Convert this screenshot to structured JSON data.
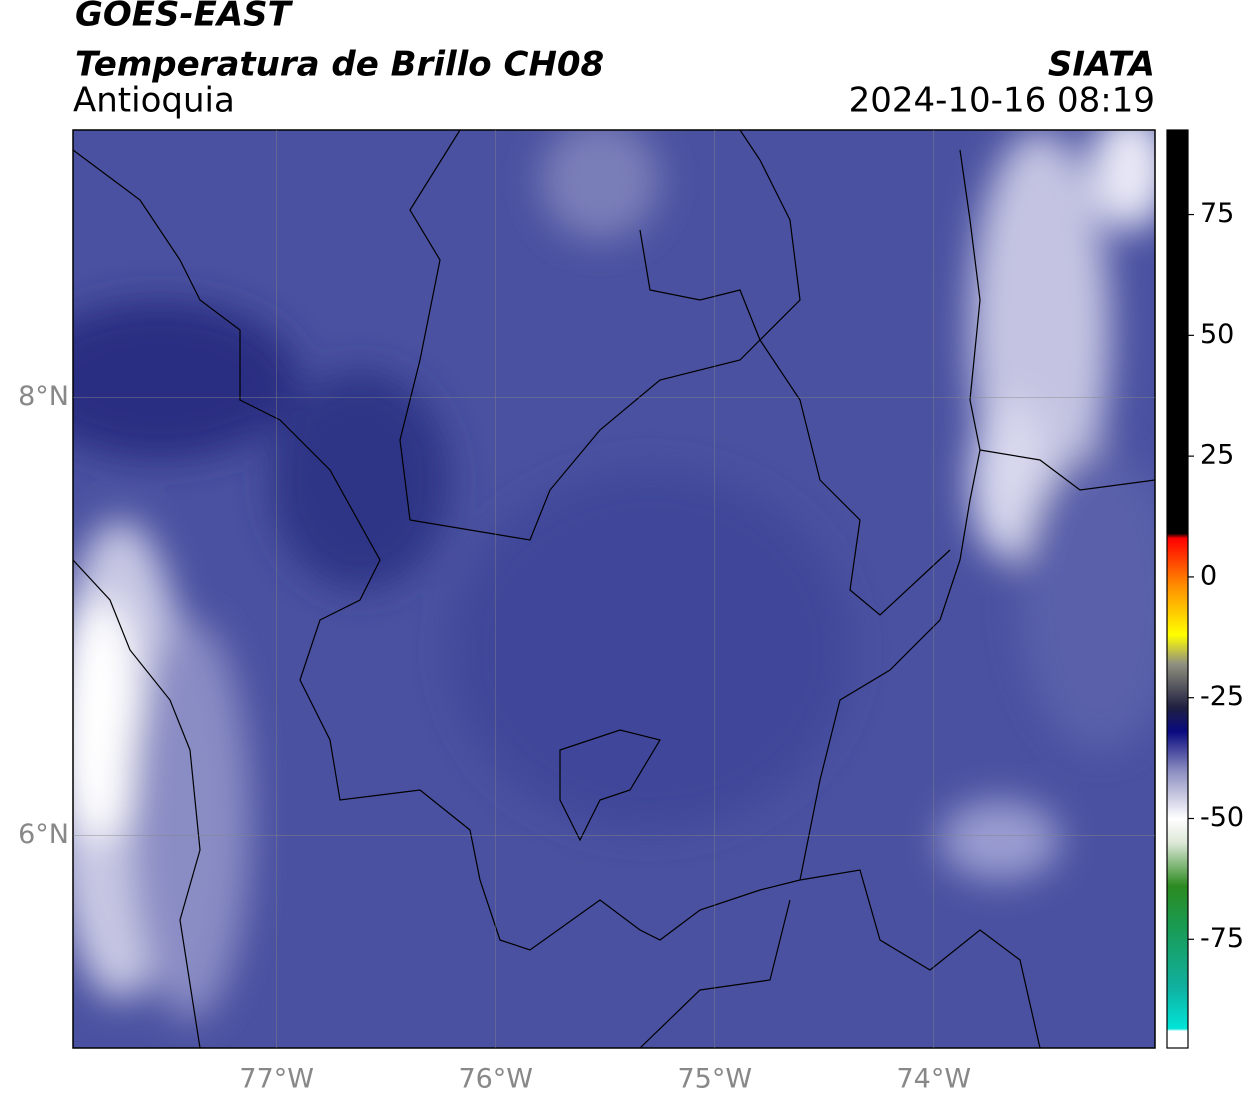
{
  "header": {
    "satellite": "GOES-EAST",
    "product": "Temperatura de Brillo CH08",
    "region": "Antioquia",
    "source": "SIATA",
    "datetime": "2024-10-16 08:19"
  },
  "map": {
    "lonlim": [
      -77.93,
      -72.99
    ],
    "latlim": [
      5.03,
      9.22
    ],
    "grid": true,
    "lonticks": [
      {
        "value": -77,
        "label": "77°W"
      },
      {
        "value": -76,
        "label": "76°W"
      },
      {
        "value": -75,
        "label": "75°W"
      },
      {
        "value": -74,
        "label": "74°W"
      }
    ],
    "latticks": [
      {
        "value": 8,
        "label": "8°N"
      },
      {
        "value": 6,
        "label": "6°N"
      }
    ]
  },
  "colorbar": {
    "clim": [
      -97.5,
      92.5
    ],
    "ticks": [
      75,
      50,
      25,
      0,
      -25,
      -50,
      -75
    ],
    "stops": [
      {
        "value": -97.5,
        "color": "#ffffff"
      },
      {
        "value": -94,
        "color": "#ffffff"
      },
      {
        "value": -93.5,
        "color": "#00e5d8"
      },
      {
        "value": -85,
        "color": "#10b0a0"
      },
      {
        "value": -72,
        "color": "#1a9a50"
      },
      {
        "value": -64,
        "color": "#2c8a20"
      },
      {
        "value": -55,
        "color": "#dde8d8"
      },
      {
        "value": -50,
        "color": "#ffffff"
      },
      {
        "value": -40,
        "color": "#8a8cc0"
      },
      {
        "value": -32,
        "color": "#0a0a80"
      },
      {
        "value": -27,
        "color": "#202040"
      },
      {
        "value": -18,
        "color": "#909080"
      },
      {
        "value": -12,
        "color": "#ffff00"
      },
      {
        "value": -2,
        "color": "#ff9000"
      },
      {
        "value": 8,
        "color": "#ff0000"
      },
      {
        "value": 9,
        "color": "#000000"
      },
      {
        "value": 92.5,
        "color": "#000000"
      }
    ]
  }
}
